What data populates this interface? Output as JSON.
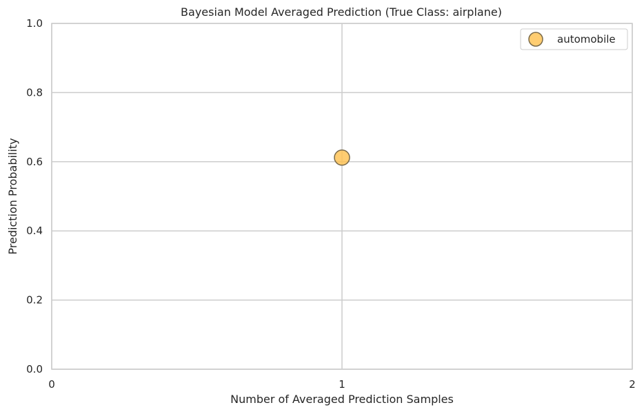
{
  "chart_data": {
    "type": "scatter",
    "title": "Bayesian Model Averaged Prediction (True Class: airplane)",
    "xlabel": "Number of Averaged Prediction Samples",
    "ylabel": "Prediction Probability",
    "xlim": [
      0,
      2
    ],
    "ylim": [
      0,
      1
    ],
    "xticks": [
      0,
      1,
      2
    ],
    "xtick_labels": [
      "0",
      "1",
      "2"
    ],
    "yticks": [
      0,
      0.2,
      0.4,
      0.6,
      0.8,
      1.0
    ],
    "ytick_labels": [
      "0.0",
      "0.2",
      "0.4",
      "0.6",
      "0.8",
      "1.0"
    ],
    "grid": true,
    "legend_position": "top-right",
    "series": [
      {
        "name": "automobile",
        "color": "#ffc04d",
        "edge_color": "#7a6a4a",
        "points": [
          {
            "x": 1,
            "y": 0.612
          }
        ]
      }
    ]
  }
}
